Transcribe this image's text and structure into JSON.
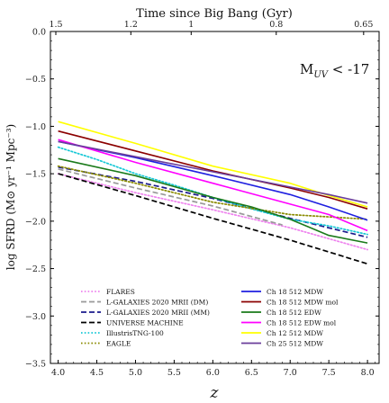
{
  "chart_data": {
    "type": "line",
    "xlabel": "z",
    "ylabel": "log SFRD (M⊙ yr⁻¹ Mpc⁻³)",
    "top_xlabel": "Time since Big Bang (Gyr)",
    "annotation": "M_UV < -17",
    "annotation_display": "MUV < -17",
    "xlim": [
      3.9,
      8.15
    ],
    "ylim": [
      -3.5,
      0.0
    ],
    "xticks": [
      4.0,
      4.5,
      5.0,
      5.5,
      6.0,
      6.5,
      7.0,
      7.5,
      8.0
    ],
    "xtick_labels": [
      "4.0",
      "4.5",
      "5.0",
      "5.5",
      "6.0",
      "6.5",
      "7.0",
      "7.5",
      "8.0"
    ],
    "yticks": [
      0.0,
      -0.5,
      -1.0,
      -1.5,
      -2.0,
      -2.5,
      -3.0,
      -3.5
    ],
    "ytick_labels": [
      "0.0",
      "−0.5",
      "−1.0",
      "−1.5",
      "−2.0",
      "−2.5",
      "−3.0",
      "−3.5"
    ],
    "top_ticks": [
      {
        "z": 3.97,
        "label": "1.5"
      },
      {
        "z": 4.94,
        "label": "1.2"
      },
      {
        "z": 5.72,
        "label": "1"
      },
      {
        "z": 6.82,
        "label": "0.8"
      },
      {
        "z": 7.95,
        "label": "0.65"
      }
    ],
    "legend_location": "lower-center",
    "grid": false,
    "series": [
      {
        "name": "FLARES",
        "color": "#ee82ee",
        "dash": "dotted",
        "x": [
          4.0,
          5.0,
          6.0,
          7.0,
          8.0
        ],
        "y": [
          -1.5,
          -1.7,
          -1.88,
          -2.07,
          -2.3
        ]
      },
      {
        "name": "L-GALAXIES 2020 MRII (DM)",
        "color": "#999999",
        "dash": "dashed",
        "x": [
          4.0,
          5.0,
          6.0,
          6.9
        ],
        "y": [
          -1.45,
          -1.65,
          -1.84,
          -2.04
        ]
      },
      {
        "name": "L-GALAXIES 2020 MRII (MM)",
        "color": "#1a1a8c",
        "dash": "dashed",
        "x": [
          4.0,
          5.0,
          6.0,
          7.0,
          8.0
        ],
        "y": [
          -1.43,
          -1.58,
          -1.76,
          -1.97,
          -2.17
        ]
      },
      {
        "name": "UNIVERSE MACHINE",
        "color": "#000000",
        "dash": "dashed",
        "x": [
          4.0,
          5.0,
          6.0,
          7.0,
          8.0
        ],
        "y": [
          -1.5,
          -1.73,
          -1.97,
          -2.2,
          -2.45
        ]
      },
      {
        "name": "IllustrisTNG-100",
        "color": "#17c8d6",
        "dash": "dotted",
        "x": [
          4.0,
          4.5,
          5.0,
          5.5,
          6.0,
          6.5,
          7.0,
          7.5,
          8.0
        ],
        "y": [
          -1.22,
          -1.35,
          -1.5,
          -1.62,
          -1.75,
          -1.87,
          -1.98,
          -2.05,
          -2.14
        ]
      },
      {
        "name": "EAGLE",
        "color": "#8a8a00",
        "dash": "dotted",
        "x": [
          4.0,
          5.0,
          6.0,
          7.0,
          8.0
        ],
        "y": [
          -1.42,
          -1.6,
          -1.8,
          -1.93,
          -1.98
        ]
      },
      {
        "name": "Ch 18 512 MDW",
        "color": "#1f1fe0",
        "dash": "solid",
        "x": [
          4.0,
          5.0,
          6.0,
          7.0,
          7.5,
          8.0
        ],
        "y": [
          -1.16,
          -1.33,
          -1.52,
          -1.72,
          -1.85,
          -1.99
        ]
      },
      {
        "name": "Ch 18 512 MDW mol",
        "color": "#8b0000",
        "dash": "solid",
        "x": [
          4.0,
          5.0,
          6.0,
          7.0,
          7.5,
          8.0
        ],
        "y": [
          -1.05,
          -1.26,
          -1.47,
          -1.65,
          -1.75,
          -1.87
        ]
      },
      {
        "name": "Ch 18 512 EDW",
        "color": "#1a7a1a",
        "dash": "solid",
        "x": [
          4.0,
          5.0,
          6.0,
          6.5,
          7.0,
          7.5,
          8.0
        ],
        "y": [
          -1.34,
          -1.52,
          -1.75,
          -1.85,
          -1.98,
          -2.15,
          -2.23
        ]
      },
      {
        "name": "Ch 18 512 EDW mol",
        "color": "#ff00ff",
        "dash": "solid",
        "x": [
          4.0,
          5.0,
          6.0,
          7.0,
          7.5,
          8.0
        ],
        "y": [
          -1.14,
          -1.38,
          -1.6,
          -1.82,
          -1.93,
          -2.1
        ]
      },
      {
        "name": "Ch 12 512 MDW",
        "color": "#ffff00",
        "dash": "solid",
        "x": [
          4.0,
          5.0,
          6.0,
          7.0,
          7.5,
          8.0
        ],
        "y": [
          -0.95,
          -1.18,
          -1.42,
          -1.6,
          -1.73,
          -1.85
        ]
      },
      {
        "name": "Ch 25 512 MDW",
        "color": "#6a3d9a",
        "dash": "solid",
        "x": [
          4.0,
          5.0,
          6.0,
          7.0,
          7.5,
          8.0
        ],
        "y": [
          -1.16,
          -1.32,
          -1.48,
          -1.64,
          -1.72,
          -1.81
        ]
      }
    ]
  }
}
